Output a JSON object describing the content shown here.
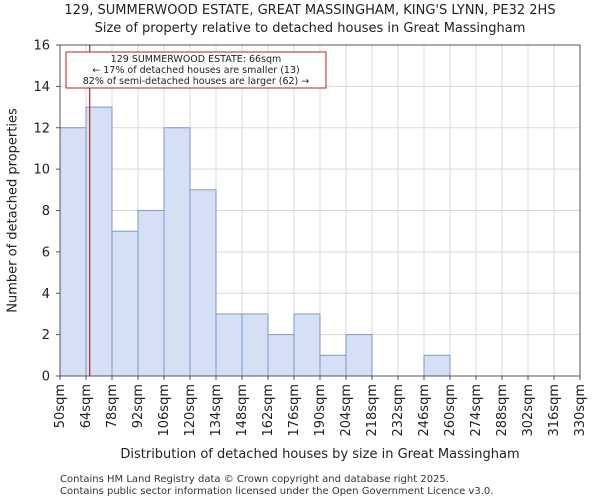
{
  "header": {
    "title_line1": "129, SUMMERWOOD ESTATE, GREAT MASSINGHAM, KING'S LYNN, PE32 2HS",
    "title_line2": "Size of property relative to detached houses in Great Massingham"
  },
  "footer": {
    "line1": "Contains HM Land Registry data © Crown copyright and database right 2025.",
    "line2": "Contains public sector information licensed under the Open Government Licence v3.0."
  },
  "chart_data": {
    "type": "bar",
    "xlabel": "Distribution of detached houses by size in Great Massingham",
    "ylabel": "Number of detached properties",
    "ylim": [
      0,
      16
    ],
    "yticks": [
      0,
      2,
      4,
      6,
      8,
      10,
      12,
      14,
      16
    ],
    "bin_edges": [
      50,
      64,
      78,
      92,
      106,
      120,
      134,
      148,
      162,
      176,
      190,
      204,
      218,
      232,
      246,
      260,
      274,
      288,
      302,
      316,
      330
    ],
    "tick_labels": [
      "50sqm",
      "64sqm",
      "78sqm",
      "92sqm",
      "106sqm",
      "120sqm",
      "134sqm",
      "148sqm",
      "162sqm",
      "176sqm",
      "190sqm",
      "204sqm",
      "218sqm",
      "232sqm",
      "246sqm",
      "260sqm",
      "274sqm",
      "288sqm",
      "302sqm",
      "316sqm",
      "330sqm"
    ],
    "values": [
      12,
      13,
      7,
      8,
      12,
      9,
      3,
      3,
      2,
      3,
      1,
      2,
      0,
      0,
      1,
      0,
      0,
      0,
      0,
      0
    ],
    "grid": true,
    "bar_color": "#d6e0f5",
    "bar_edge_color": "#7a9ad0",
    "marker": {
      "x": 66,
      "color": "#b22222",
      "label_lines": [
        "129 SUMMERWOOD ESTATE: 66sqm",
        "← 17% of detached houses are smaller (13)",
        "82% of semi-detached houses are larger (62) →"
      ]
    }
  }
}
